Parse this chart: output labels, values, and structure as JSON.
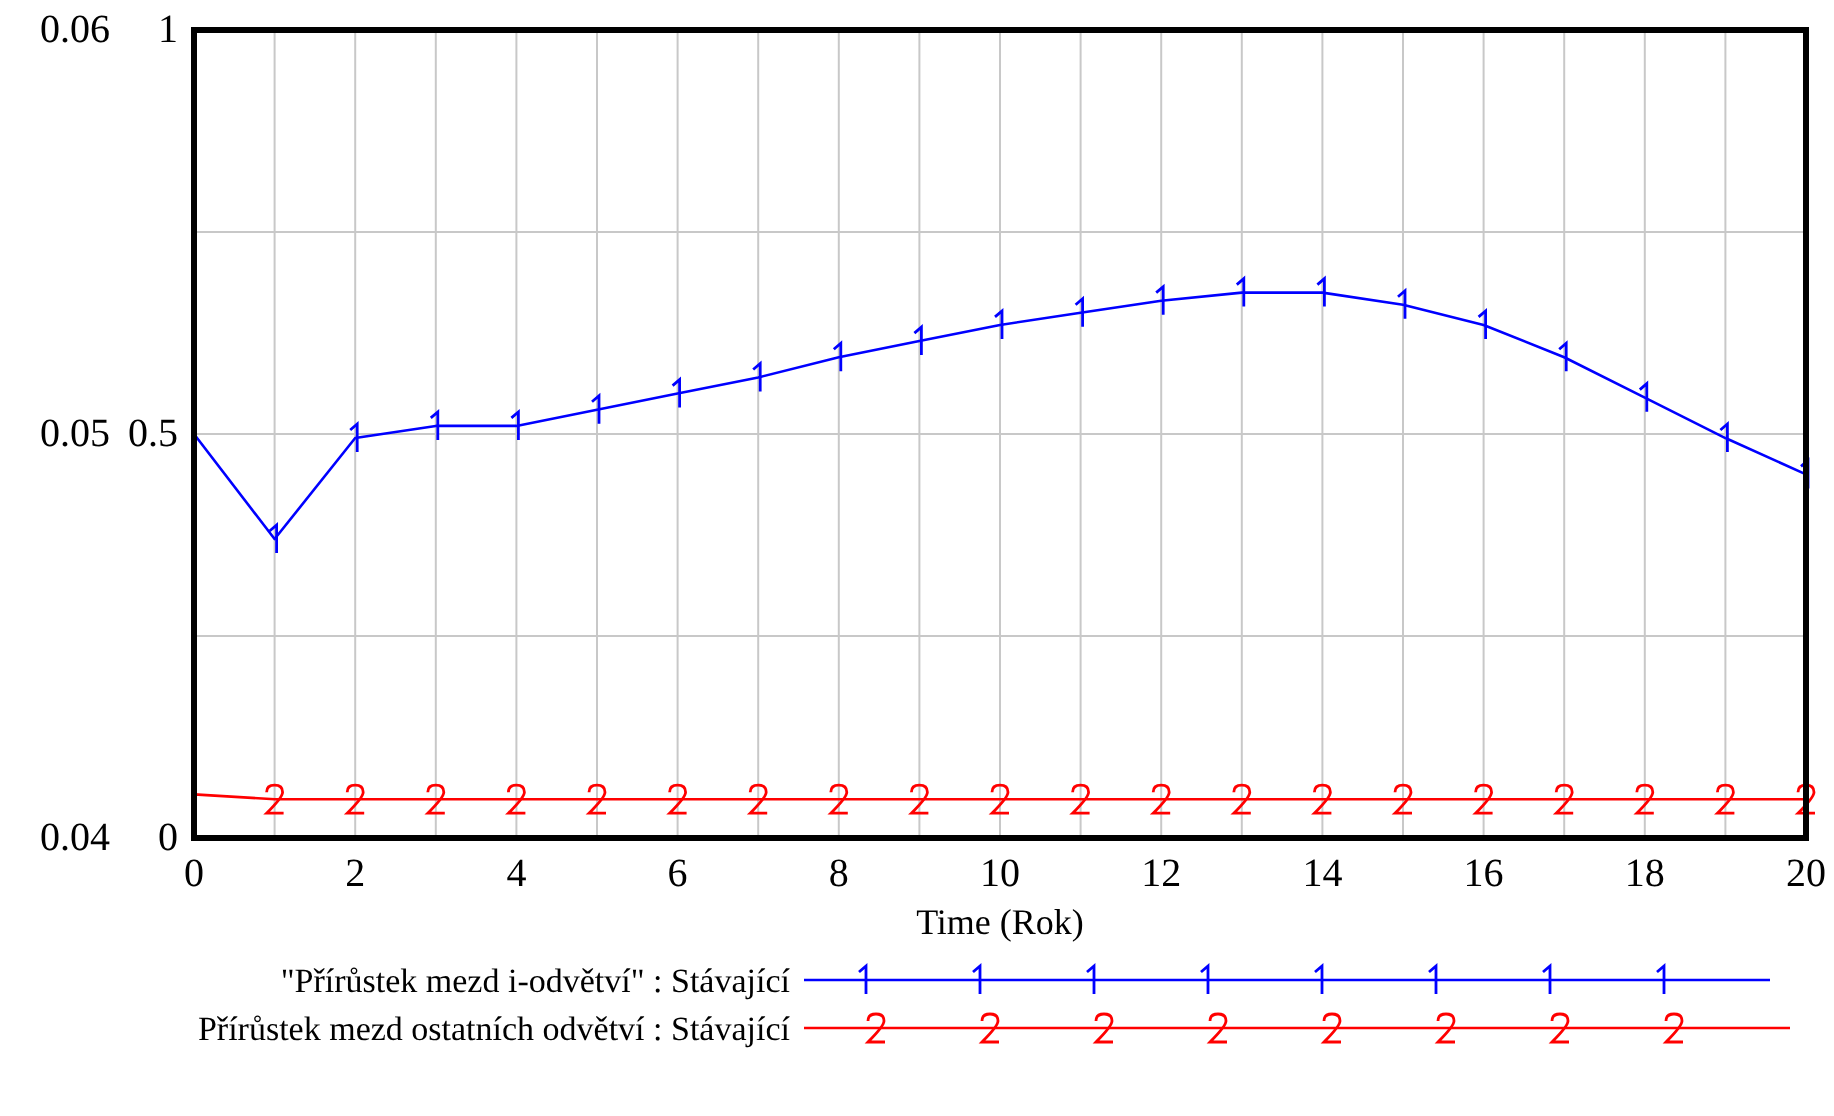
{
  "chart_data": {
    "type": "line",
    "xlabel": "Time (Rok)",
    "x": [
      0,
      1,
      2,
      3,
      4,
      5,
      6,
      7,
      8,
      9,
      10,
      11,
      12,
      13,
      14,
      15,
      16,
      17,
      18,
      19,
      20
    ],
    "xlim": [
      0,
      20
    ],
    "xticks": [
      0,
      {
        "value": 1,
        "label": null
      },
      2,
      {
        "value": 3,
        "label": null
      },
      4,
      {
        "value": 5,
        "label": null
      },
      6,
      {
        "value": 7,
        "label": null
      },
      8,
      {
        "value": 9,
        "label": null
      },
      10,
      {
        "value": 11,
        "label": null
      },
      12,
      {
        "value": 13,
        "label": null
      },
      14,
      {
        "value": 15,
        "label": null
      },
      16,
      {
        "value": 17,
        "label": null
      },
      18,
      {
        "value": 19,
        "label": null
      },
      20
    ],
    "ylim": [
      0.04,
      0.06
    ],
    "yticks": [
      0.04,
      {
        "value": 0.045,
        "label": null
      },
      0.05,
      {
        "value": 0.055,
        "label": null
      },
      0.06
    ],
    "y2lim": [
      0,
      1
    ],
    "y2ticks": [
      0,
      0.5,
      1
    ],
    "grid": true,
    "legend": "bottom",
    "series": [
      {
        "name": "\"Přírůstek mezd i-odvětví\" : Stávající",
        "color": "#0000ff",
        "values": [
          0.05,
          0.0474,
          0.0499,
          0.0502,
          0.0502,
          0.0506,
          0.051,
          0.0514,
          0.0519,
          0.0523,
          0.0527,
          0.053,
          0.0533,
          0.0535,
          0.0535,
          0.0532,
          0.0527,
          0.0519,
          0.0509,
          0.0499,
          0.049
        ]
      },
      {
        "name": "Přírůstek mezd ostatních odvětví : Stávající",
        "color": "#ff0000",
        "axis": "y2",
        "marker": "cross",
        "values": [
          0.054,
          0.048,
          0.048,
          0.048,
          0.048,
          0.048,
          0.048,
          0.048,
          0.048,
          0.048,
          0.048,
          0.048,
          0.048,
          0.048,
          0.048,
          0.048,
          0.048,
          0.048,
          0.048,
          0.048,
          0.048
        ]
      }
    ]
  }
}
